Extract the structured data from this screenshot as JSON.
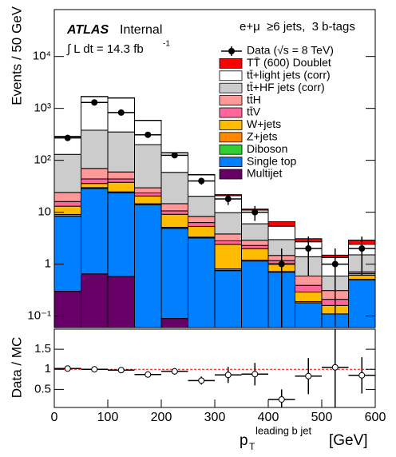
{
  "chart_data": [
    {
      "type": "stacked_histogram",
      "ylabel": "Events / 50 GeV",
      "atlas": "ATLAS",
      "atlas_status": "Internal",
      "luminosity": "∫ L dt = 14.3 fb",
      "luminosity_exponent": "-1",
      "channel": "e+μ  ≥6 jets,  3 b-tags",
      "log_scale": true,
      "ylim": [
        0.06,
        80000
      ],
      "yticks": [
        {
          "value": 0.1,
          "label": "10⁻¹"
        },
        1,
        10,
        {
          "value": 100,
          "label": "10²"
        },
        {
          "value": 1000,
          "label": "10³"
        },
        {
          "value": 10000,
          "label": "10⁴"
        }
      ],
      "bins": [
        0,
        50,
        100,
        150,
        200,
        250,
        300,
        350,
        400,
        450,
        500,
        550,
        600
      ],
      "data": {
        "name": "Data (√s = 8 TeV)",
        "color": "#000000",
        "values": [
          270,
          1300,
          830,
          310,
          125,
          40,
          18,
          10,
          1,
          2,
          1,
          2
        ],
        "errors": [
          16,
          36,
          29,
          18,
          11,
          6,
          4.2,
          3.2,
          1,
          1.4,
          1,
          1.4
        ]
      },
      "series": [
        {
          "name": "TT̄ (600) Doublet",
          "color": "#ff0000",
          "values": [
            5,
            20,
            20,
            5,
            2,
            1,
            1,
            0.5,
            1.2,
            0.4,
            0.15,
            0.5
          ]
        },
        {
          "name": "tt̄+light jets (corr)",
          "color": "#ffffff",
          "values": [
            155,
            1300,
            1230,
            385,
            80,
            32,
            11,
            5,
            2.4,
            1.3,
            0.75,
            0.9
          ]
        },
        {
          "name": "tt̄+HF jets (corr)",
          "color": "#cccccc",
          "values": [
            106,
            310,
            292,
            171,
            44,
            12,
            6,
            3.1,
            1.5,
            0.8,
            0.28,
            0.8
          ]
        },
        {
          "name": "tt̄H",
          "color": "#ff9999",
          "values": [
            8,
            26,
            16,
            6,
            4,
            2,
            1,
            0.6,
            0.3,
            0.2,
            0.1,
            0.05
          ]
        },
        {
          "name": "tt̄V",
          "color": "#ff6699",
          "values": [
            3,
            8,
            6,
            3,
            1.5,
            1,
            0.4,
            0.3,
            0.15,
            0.1,
            0.05,
            0.05
          ]
        },
        {
          "name": "W+jets",
          "color": "#ffbb00",
          "values": [
            4,
            6,
            13,
            6,
            4,
            2,
            1.6,
            0.8,
            0.3,
            0.1,
            0.05,
            0.1
          ]
        },
        {
          "name": "Z+jets",
          "color": "#ff8800",
          "values": [
            0.6,
            1,
            1,
            0.5,
            0.2,
            0.1,
            0.05,
            0.03,
            0.02,
            0.01,
            0,
            0.01
          ]
        },
        {
          "name": "Diboson",
          "color": "#33cc33",
          "values": [
            0.05,
            0.1,
            0.1,
            0.05,
            0.02,
            0.02,
            0.01,
            0.01,
            0,
            0,
            0,
            0
          ]
        },
        {
          "name": "Single top",
          "color": "#0080ff",
          "values": [
            8.1,
            28,
            23,
            14,
            4.8,
            3.2,
            0.75,
            1.15,
            0.7,
            0.18,
            0.11,
            0.5
          ]
        },
        {
          "name": "Multijet",
          "color": "#660066",
          "values": [
            0.3,
            0.65,
            0.58,
            0,
            0.09,
            0,
            0,
            0,
            0,
            0,
            0,
            0
          ]
        }
      ]
    },
    {
      "type": "ratio",
      "ylabel": "Data / MC",
      "xlabel": "p",
      "xlabel_sub": "T",
      "xlabel_sup": "leading b jet",
      "xlabel_unit": "[GeV]",
      "ylim": [
        0.05,
        2
      ],
      "yticks": [
        0.5,
        1,
        1.5
      ],
      "xlim": [
        0,
        600
      ],
      "xticks": [
        0,
        100,
        200,
        300,
        400,
        500,
        600
      ],
      "reference": 1,
      "values": [
        1.02,
        1.0,
        0.98,
        0.87,
        0.95,
        0.72,
        0.86,
        0.88,
        0.25,
        0.83,
        1.05,
        0.85
      ],
      "errors": [
        0.05,
        0.03,
        0.03,
        0.05,
        0.08,
        0.1,
        0.2,
        0.28,
        0.25,
        0.45,
        1.1,
        0.45
      ]
    }
  ]
}
